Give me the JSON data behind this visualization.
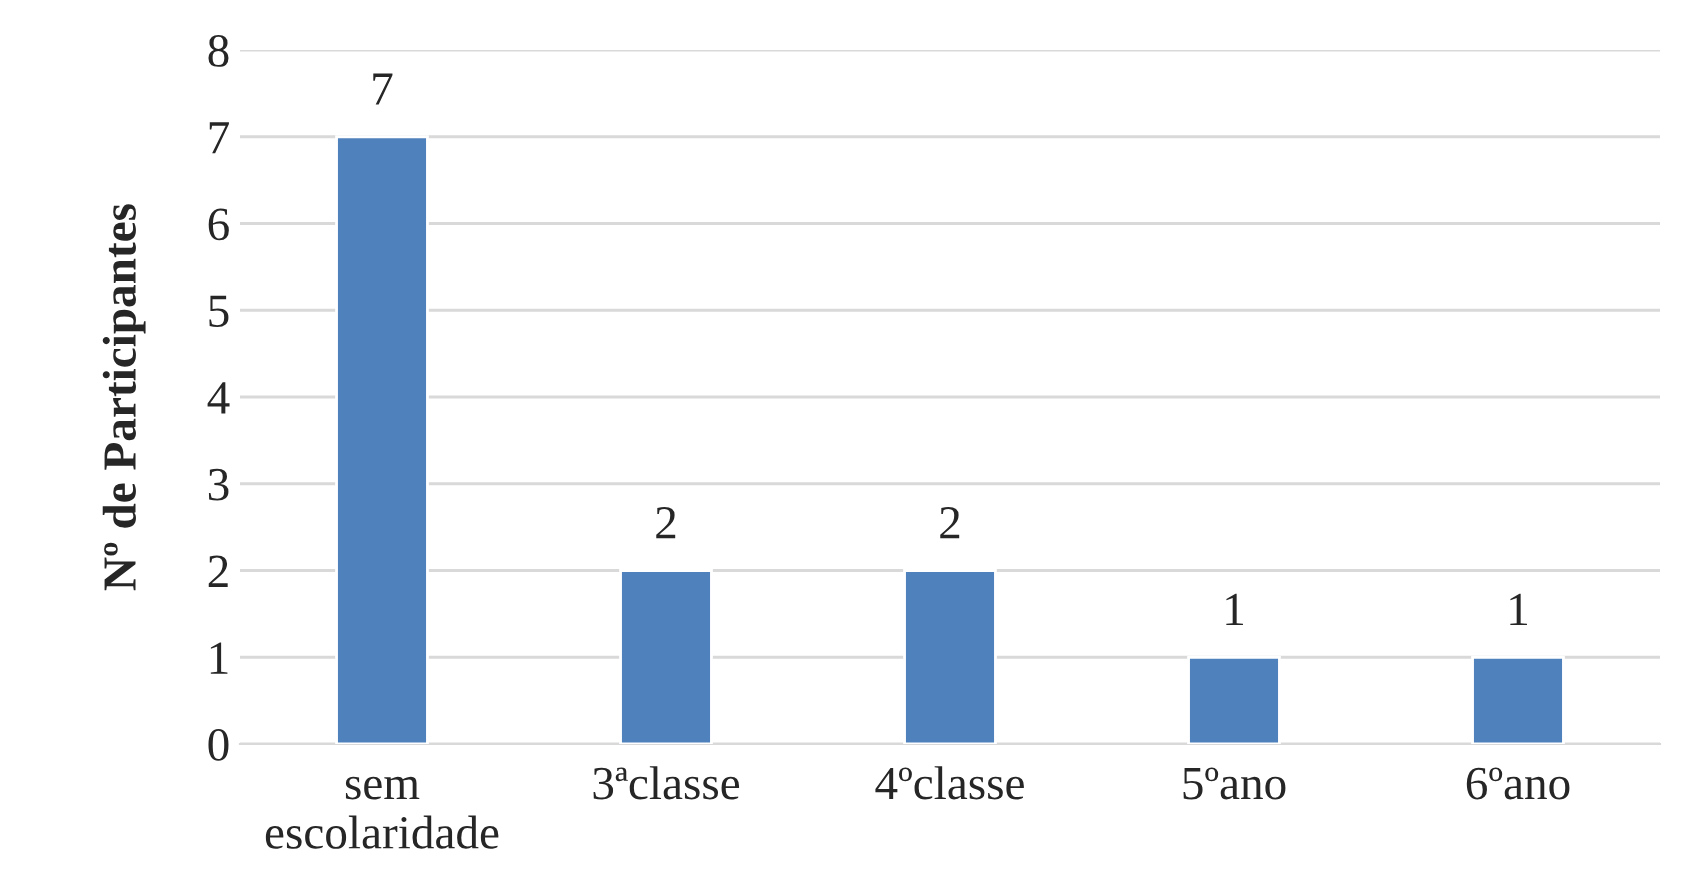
{
  "chart_data": {
    "type": "bar",
    "ylabel": "Nº de Participantes",
    "categories": [
      "sem\nescolaridade",
      "3ªclasse",
      "4ºclasse",
      "5ºano",
      "6ºano"
    ],
    "values": [
      7,
      2,
      2,
      1,
      1
    ],
    "color": "#4f81bd",
    "ylim": [
      0,
      8
    ],
    "yticks": [
      0,
      1,
      2,
      3,
      4,
      5,
      6,
      7,
      8
    ],
    "grid": "y",
    "data_labels": true
  }
}
